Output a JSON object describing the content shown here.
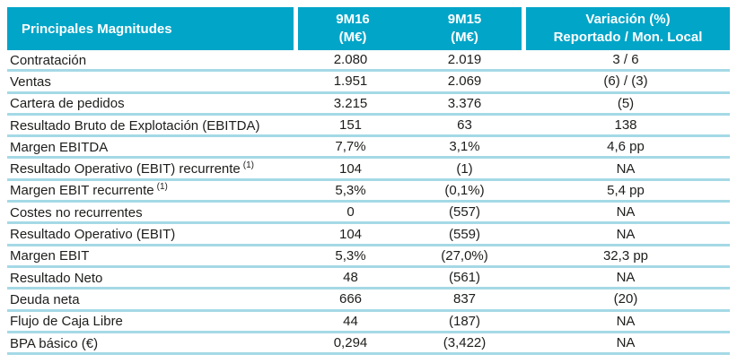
{
  "header": {
    "col1": "Principales Magnitudes",
    "col2_line1": "9M16",
    "col2_line2": "(M€)",
    "col3_line1": "9M15",
    "col3_line2": "(M€)",
    "col4_line1": "Variación (%)",
    "col4_line2": "Reportado / Mon. Local"
  },
  "colors": {
    "header_bg": "#00a5c8",
    "header_text": "#ffffff",
    "row_divider": "#a5d9e6",
    "body_text": "#1d1d1b"
  },
  "chart_data": {
    "type": "table",
    "title": "Principales Magnitudes",
    "columns": [
      "Principales Magnitudes",
      "9M16 (M€)",
      "9M15 (M€)",
      "Variación (%) Reportado / Mon. Local"
    ],
    "rows": [
      {
        "label": "Contratación",
        "v16": "2.080",
        "v15": "2.019",
        "var": "3 / 6"
      },
      {
        "label": "Ventas",
        "v16": "1.951",
        "v15": "2.069",
        "var": "(6) / (3)"
      },
      {
        "label": "Cartera de pedidos",
        "v16": "3.215",
        "v15": "3.376",
        "var": "(5)"
      },
      {
        "label": "Resultado Bruto de Explotación (EBITDA)",
        "v16": "151",
        "v15": "63",
        "var": "138"
      },
      {
        "label": "Margen EBITDA",
        "v16": "7,7%",
        "v15": "3,1%",
        "var": "4,6 pp"
      },
      {
        "label": "Resultado Operativo (EBIT) recurrente",
        "sup": "(1)",
        "v16": "104",
        "v15": "(1)",
        "var": "NA"
      },
      {
        "label": "Margen EBIT recurrente",
        "sup": "(1)",
        "v16": "5,3%",
        "v15": "(0,1%)",
        "var": "5,4 pp"
      },
      {
        "label": "Costes no recurrentes",
        "v16": "0",
        "v15": "(557)",
        "var": "NA"
      },
      {
        "label": "Resultado Operativo (EBIT)",
        "v16": "104",
        "v15": "(559)",
        "var": "NA"
      },
      {
        "label": "Margen EBIT",
        "v16": "5,3%",
        "v15": "(27,0%)",
        "var": "32,3 pp"
      },
      {
        "label": "Resultado Neto",
        "v16": "48",
        "v15": "(561)",
        "var": "NA"
      },
      {
        "label": "Deuda neta",
        "v16": "666",
        "v15": "837",
        "var": "(20)"
      },
      {
        "label": "Flujo de Caja Libre",
        "v16": "44",
        "v15": "(187)",
        "var": "NA"
      },
      {
        "label": "BPA básico (€)",
        "v16": "0,294",
        "v15": "(3,422)",
        "var": "NA"
      }
    ]
  }
}
